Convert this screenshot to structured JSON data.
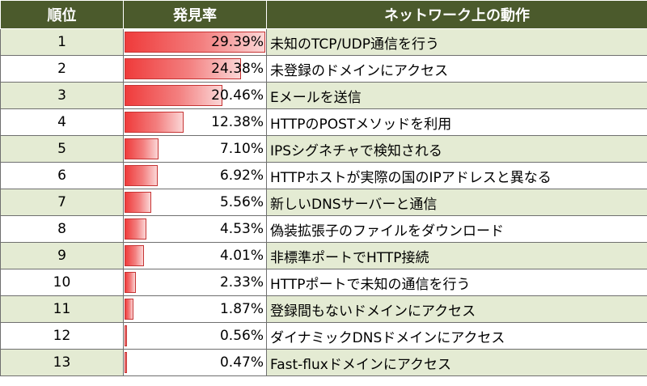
{
  "table": {
    "headers": {
      "rank": "順位",
      "rate": "発見率",
      "action": "ネットワーク上の動作"
    },
    "bar_max": 29.39
  },
  "chart_data": {
    "type": "table",
    "columns": [
      "順位",
      "発見率",
      "ネットワーク上の動作"
    ],
    "rows": [
      {
        "rank": "1",
        "rate": 29.39,
        "rate_label": "29.39%",
        "action": "未知のTCP/UDP通信を行う"
      },
      {
        "rank": "2",
        "rate": 24.38,
        "rate_label": "24.38%",
        "action": "未登録のドメインにアクセス"
      },
      {
        "rank": "3",
        "rate": 20.46,
        "rate_label": "20.46%",
        "action": "Eメールを送信"
      },
      {
        "rank": "4",
        "rate": 12.38,
        "rate_label": "12.38%",
        "action": "HTTPのPOSTメソッドを利用"
      },
      {
        "rank": "5",
        "rate": 7.1,
        "rate_label": "7.10%",
        "action": "IPSシグネチャで検知される"
      },
      {
        "rank": "6",
        "rate": 6.92,
        "rate_label": "6.92%",
        "action": "HTTPホストが実際の国のIPアドレスと異なる"
      },
      {
        "rank": "7",
        "rate": 5.56,
        "rate_label": "5.56%",
        "action": "新しいDNSサーバーと通信"
      },
      {
        "rank": "8",
        "rate": 4.53,
        "rate_label": "4.53%",
        "action": "偽装拡張子のファイルをダウンロード"
      },
      {
        "rank": "9",
        "rate": 4.01,
        "rate_label": "4.01%",
        "action": "非標準ポートでHTTP接続"
      },
      {
        "rank": "10",
        "rate": 2.33,
        "rate_label": "2.33%",
        "action": "HTTPポートで未知の通信を行う"
      },
      {
        "rank": "11",
        "rate": 1.87,
        "rate_label": "1.87%",
        "action": "登録間もないドメインにアクセス"
      },
      {
        "rank": "12",
        "rate": 0.56,
        "rate_label": "0.56%",
        "action": "ダイナミックDNSドメインにアクセス"
      },
      {
        "rank": "13",
        "rate": 0.47,
        "rate_label": "0.47%",
        "action": "Fast-fluxドメインにアクセス"
      }
    ]
  },
  "colors": {
    "header_bg": "#4b5a2c",
    "row_alt_bg": "#e4ebd3",
    "bar_red": "#ef3b3b"
  }
}
